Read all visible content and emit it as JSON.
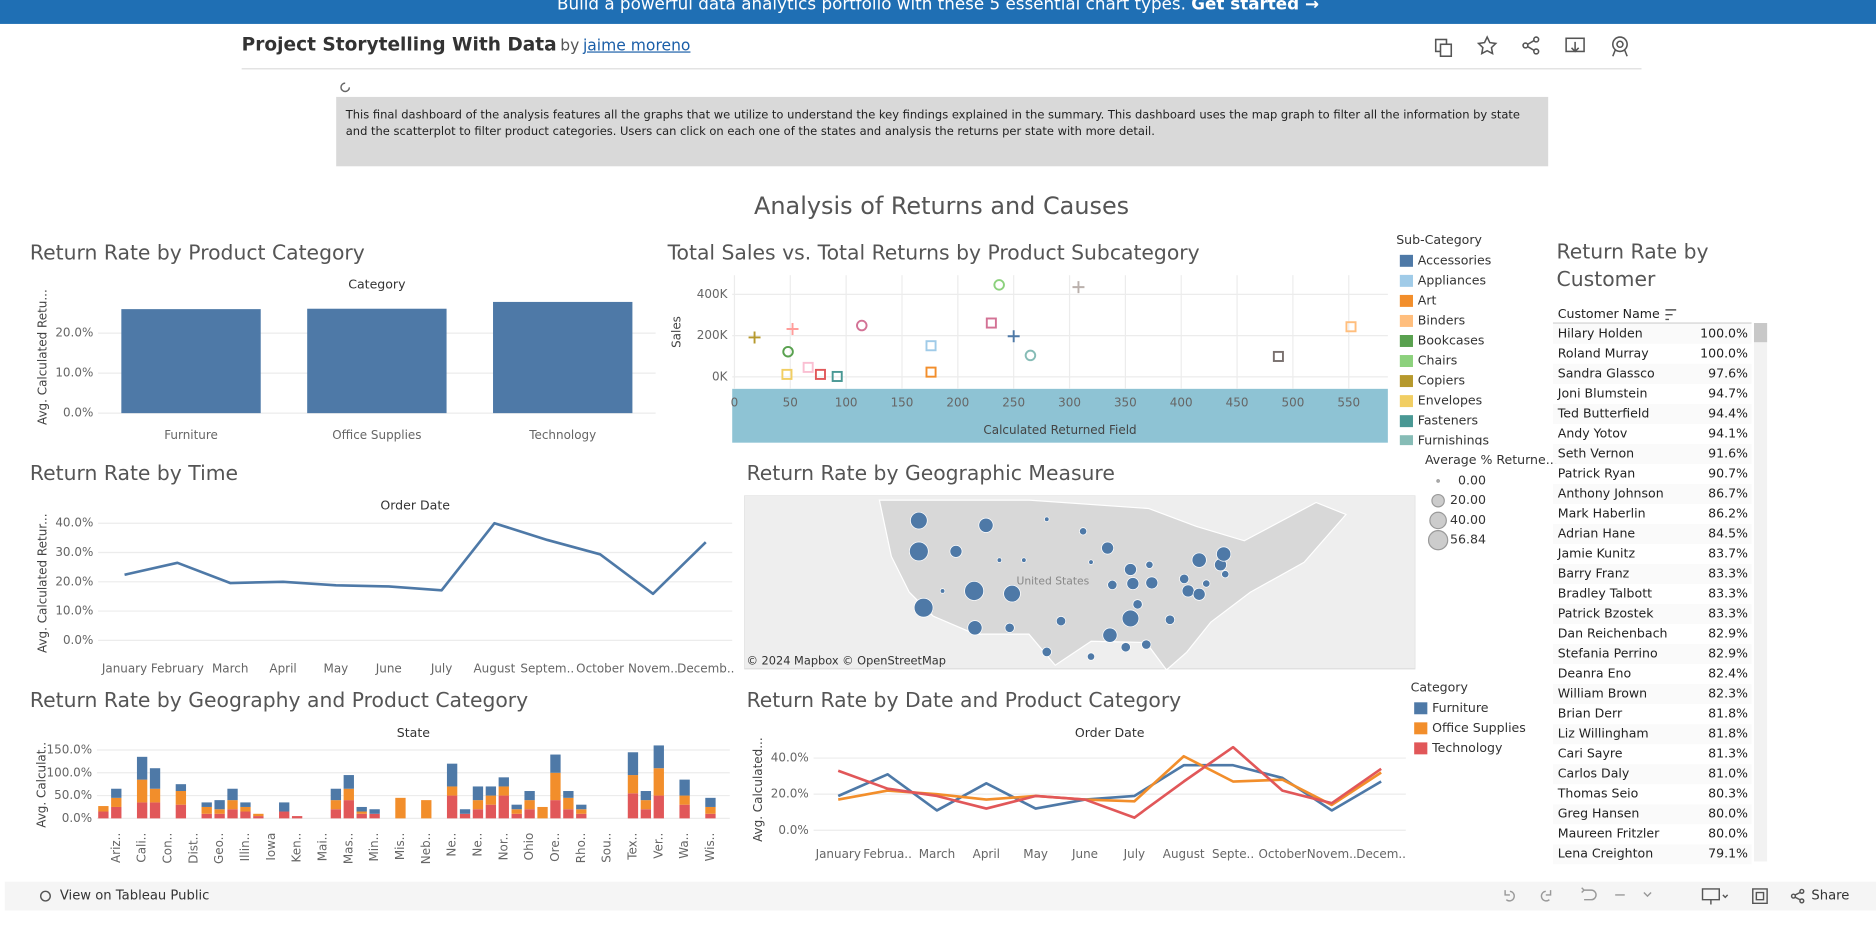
{
  "banner": {
    "text": "Build a powerful data analytics portfolio with these 5 essential chart types.",
    "link": "Get started →"
  },
  "header": {
    "title": "Project Storytelling With Data",
    "by": "by",
    "author": "jaime moreno"
  },
  "description": "This final dashboard of the analysis features all the graphs that we utilize to understand the key findings explained in the summary. This dashboard uses the map graph to filter all the information by state and the scatterplot to filter product categories. Users can click on each one of the states and analysis the returns per state with more detail.",
  "dashboard_title": "Analysis of Returns and Causes",
  "chart_data": [
    {
      "type": "bar",
      "title": "Return Rate by Product Category",
      "x_header": "Category",
      "y_label": "Avg. Calculated Retu...",
      "categories": [
        "Furniture",
        "Office Supplies",
        "Technology"
      ],
      "values": [
        26.0,
        26.1,
        27.8
      ],
      "color": "#4e79a7",
      "ylim": [
        -2,
        30
      ],
      "yticks": [
        {
          "value": 0,
          "label": "0.0%"
        },
        {
          "value": 10,
          "label": "10.0%"
        },
        {
          "value": 20,
          "label": "20.0%"
        }
      ],
      "grid": true
    },
    {
      "type": "scatter",
      "title": "Total Sales vs. Total Returns by Product Subcategory",
      "x_label": "Calculated Returned Field",
      "y_label": "Sales",
      "x": [
        18,
        52,
        114,
        237,
        308,
        48,
        47,
        66,
        77,
        92,
        176,
        176,
        230,
        250,
        265,
        487,
        552
      ],
      "y": [
        191000,
        232000,
        249000,
        446000,
        435000,
        122000,
        12000,
        46000,
        12000,
        2000,
        151000,
        23000,
        261000,
        197000,
        104000,
        99000,
        243000
      ],
      "colors": [
        "#b6992d",
        "#ff9d9a",
        "#d37295",
        "#8cd17d",
        "#bab0ac",
        "#59a14f",
        "#f1ce63",
        "#fabfd2",
        "#e15759",
        "#499894",
        "#a0cbe8",
        "#f28e2b",
        "#d37295",
        "#4e79a7",
        "#86bcb6",
        "#79706e",
        "#ffbe7d"
      ],
      "shapes": [
        "plus",
        "plus",
        "circle",
        "circle",
        "plus",
        "circle",
        "square",
        "square",
        "square",
        "square",
        "square",
        "square",
        "square",
        "plus",
        "circle",
        "square",
        "square"
      ],
      "xlim": [
        -2,
        585
      ],
      "xticks": [
        0,
        50,
        100,
        150,
        200,
        250,
        300,
        350,
        400,
        450,
        500,
        550
      ],
      "ylim": [
        -58000,
        493000
      ],
      "yticks": [
        {
          "value": 0,
          "label": "0K"
        },
        {
          "value": 200000,
          "label": "200K"
        },
        {
          "value": 400000,
          "label": "400K"
        }
      ],
      "grid": true,
      "legend_title": "Sub-Category",
      "legend": [
        {
          "name": "Accessories",
          "color": "#4e79a7"
        },
        {
          "name": "Appliances",
          "color": "#a0cbe8"
        },
        {
          "name": "Art",
          "color": "#f28e2b"
        },
        {
          "name": "Binders",
          "color": "#ffbe7d"
        },
        {
          "name": "Bookcases",
          "color": "#59a14f"
        },
        {
          "name": "Chairs",
          "color": "#8cd17d"
        },
        {
          "name": "Copiers",
          "color": "#b6992d"
        },
        {
          "name": "Envelopes",
          "color": "#f1ce63"
        },
        {
          "name": "Fasteners",
          "color": "#499894"
        },
        {
          "name": "Furnishings",
          "color": "#86bcb6"
        }
      ]
    },
    {
      "type": "line",
      "title": "Return Rate by Time",
      "x_header": "Order Date",
      "y_label": "Avg. Calculated Retur...",
      "categories": [
        "January",
        "February",
        "March",
        "April",
        "May",
        "June",
        "July",
        "August",
        "Septem..",
        "October",
        "Novem..",
        "Decemb.."
      ],
      "values": [
        22.4,
        26.5,
        19.6,
        20.0,
        18.8,
        18.4,
        17.1,
        40.0,
        34.3,
        29.4,
        15.9,
        33.5
      ],
      "color": "#4e79a7",
      "ylim": [
        -4,
        43
      ],
      "yticks": [
        {
          "value": 0,
          "label": "0.0%"
        },
        {
          "value": 10,
          "label": "10.0%"
        },
        {
          "value": 20,
          "label": "20.0%"
        },
        {
          "value": 30,
          "label": "30.0%"
        },
        {
          "value": 40,
          "label": "40.0%"
        }
      ],
      "grid": true
    },
    {
      "type": "map",
      "title": "Return Rate by Geographic Measure",
      "place_label": "United States",
      "attribution": "© 2024 Mapbox © OpenStreetMap",
      "color": "#4e79a7",
      "lon": [
        -120.0,
        -120.0,
        -115.3,
        -111.5,
        -119.4,
        -113.0,
        -108.2,
        -112.9,
        -108.5,
        -103.8,
        -103.8,
        -102.0,
        -99.2,
        -96.1,
        -98.2,
        -95.5,
        -93.2,
        -92.9,
        -90.5,
        -92.3,
        -93.2,
        -95.8,
        -93.8,
        -91.2,
        -88.2,
        -86.4,
        -85.9,
        -84.5,
        -84.5,
        -81.8,
        -81.4,
        -81.2,
        -83.6,
        -90.8,
        -98.2,
        -106.7,
        -109.8,
        -117.0
      ],
      "lat": [
        46.3,
        41.7,
        41.7,
        45.6,
        33.3,
        35.8,
        35.4,
        30.3,
        30.3,
        46.5,
        26.7,
        31.3,
        44.7,
        42.2,
        40.1,
        36.7,
        39.0,
        36.9,
        37.0,
        33.8,
        31.7,
        29.2,
        27.4,
        27.8,
        31.5,
        37.6,
        35.8,
        35.3,
        40.4,
        39.7,
        41.3,
        38.3,
        36.9,
        39.7,
        26.0,
        40.4,
        40.4,
        35.8
      ],
      "sizes": [
        42,
        55,
        19,
        29,
        55,
        56,
        42,
        29,
        10,
        1,
        10,
        10,
        5,
        19,
        1,
        10,
        19,
        19,
        19,
        10,
        42,
        29,
        10,
        10,
        10,
        10,
        19,
        19,
        29,
        19,
        29,
        5,
        5,
        5,
        5,
        1,
        1,
        1
      ],
      "size_legend_title": "Average % Returne...",
      "size_legend": [
        {
          "value": 0,
          "label": "0.00"
        },
        {
          "value": 20,
          "label": "20.00"
        },
        {
          "value": 40,
          "label": "40.00"
        },
        {
          "value": 56.84,
          "label": "56.84"
        }
      ]
    },
    {
      "type": "stacked_bar",
      "title": "Return Rate by Geography and Product Category",
      "x_header": "State",
      "y_label": "Avg. Calculat..",
      "categories": [
        null,
        "Ariz..",
        null,
        "Cali..",
        null,
        "Con..",
        null,
        "Dist..",
        null,
        "Geo..",
        null,
        "Illin..",
        null,
        "Iowa",
        null,
        "Ken..",
        null,
        "Mai..",
        null,
        "Mas..",
        null,
        "Min..",
        null,
        "Mis..",
        null,
        "Neb..",
        null,
        "Ne..",
        null,
        "Ne..",
        null,
        "Nor..",
        null,
        "Ohio",
        null,
        "Ore..",
        null,
        "Rho..",
        null,
        "Sou..",
        null,
        "Tex..",
        null,
        "Ver..",
        null,
        "Wa..",
        null,
        "Wis..",
        null
      ],
      "series": [
        {
          "color": "#e15759",
          "values": [
            15,
            25,
            null,
            35,
            35,
            null,
            30,
            null,
            10,
            10,
            20,
            15,
            5,
            null,
            15,
            5,
            null,
            null,
            20,
            40,
            10,
            10,
            null,
            null,
            null,
            null,
            null,
            50,
            10,
            20,
            30,
            50,
            10,
            20,
            null,
            40,
            20,
            10,
            null,
            null,
            null,
            55,
            20,
            50,
            null,
            30,
            null,
            10,
            null
          ]
        },
        {
          "color": "#f28e2b",
          "values": [
            12,
            20,
            null,
            50,
            30,
            null,
            30,
            null,
            15,
            10,
            20,
            10,
            5,
            null,
            null,
            null,
            null,
            null,
            20,
            25,
            5,
            null,
            null,
            45,
            null,
            40,
            null,
            20,
            null,
            20,
            20,
            20,
            10,
            20,
            25,
            60,
            25,
            10,
            null,
            null,
            null,
            40,
            20,
            60,
            null,
            20,
            null,
            15,
            null
          ]
        },
        {
          "color": "#4e79a7",
          "values": [
            null,
            20,
            null,
            50,
            45,
            null,
            15,
            null,
            10,
            20,
            25,
            10,
            null,
            null,
            20,
            null,
            null,
            null,
            25,
            30,
            10,
            10,
            null,
            null,
            null,
            null,
            null,
            50,
            10,
            30,
            20,
            20,
            10,
            20,
            null,
            40,
            15,
            10,
            null,
            null,
            null,
            50,
            20,
            50,
            null,
            35,
            null,
            20,
            null
          ]
        }
      ],
      "ylim": [
        -21,
        168
      ],
      "yticks": [
        {
          "value": 0,
          "label": "0.0%"
        },
        {
          "value": 50,
          "label": "50.0%"
        },
        {
          "value": 100,
          "label": "100.0%"
        },
        {
          "value": 150,
          "label": "150.0%"
        }
      ],
      "grid": true
    },
    {
      "type": "line",
      "title": "Return Rate by Date and Product Category",
      "x_header": "Order Date",
      "y_label": "Avg. Calculated...",
      "categories": [
        "January",
        "Februa..",
        "March",
        "April",
        "May",
        "June",
        "July",
        "August",
        "Septe..",
        "October",
        "Novem..",
        "Decem.."
      ],
      "series": [
        {
          "name": "Furniture",
          "color": "#4e79a7",
          "values": [
            19,
            31,
            11,
            26,
            12,
            17,
            19,
            36,
            36,
            29,
            11,
            27
          ]
        },
        {
          "name": "Office Supplies",
          "color": "#f28e2b",
          "values": [
            17,
            22,
            20,
            17,
            19,
            17,
            16,
            41,
            27,
            28,
            14,
            32
          ]
        },
        {
          "name": "Technology",
          "color": "#e15759",
          "values": [
            33,
            23,
            19,
            12,
            19,
            17,
            7,
            27,
            46,
            22,
            15,
            34
          ]
        }
      ],
      "legend_title": "Category",
      "ylim": [
        -4,
        49
      ],
      "yticks": [
        {
          "value": 0,
          "label": "0.0%"
        },
        {
          "value": 20,
          "label": "20.0%"
        },
        {
          "value": 40,
          "label": "40.0%"
        }
      ],
      "grid": true
    }
  ],
  "customer_table": {
    "title": "Return Rate by Customer",
    "column": "Customer Name",
    "rows": [
      [
        "Hilary Holden",
        "100.0%"
      ],
      [
        "Roland Murray",
        "100.0%"
      ],
      [
        "Sandra Glassco",
        "97.6%"
      ],
      [
        "Joni Blumstein",
        "94.7%"
      ],
      [
        "Ted Butterfield",
        "94.4%"
      ],
      [
        "Andy Yotov",
        "94.1%"
      ],
      [
        "Seth Vernon",
        "91.6%"
      ],
      [
        "Patrick Ryan",
        "90.7%"
      ],
      [
        "Anthony Johnson",
        "86.7%"
      ],
      [
        "Mark Haberlin",
        "86.2%"
      ],
      [
        "Adrian Hane",
        "84.5%"
      ],
      [
        "Jamie Kunitz",
        "83.7%"
      ],
      [
        "Barry Franz",
        "83.3%"
      ],
      [
        "Bradley Talbott",
        "83.3%"
      ],
      [
        "Patrick Bzostek",
        "83.3%"
      ],
      [
        "Dan Reichenbach",
        "82.9%"
      ],
      [
        "Stefania Perrino",
        "82.9%"
      ],
      [
        "Deanra Eno",
        "82.4%"
      ],
      [
        "William Brown",
        "82.3%"
      ],
      [
        "Brian Derr",
        "81.8%"
      ],
      [
        "Liz Willingham",
        "81.8%"
      ],
      [
        "Cari Sayre",
        "81.3%"
      ],
      [
        "Carlos Daly",
        "81.0%"
      ],
      [
        "Thomas Seio",
        "80.3%"
      ],
      [
        "Greg Hansen",
        "80.0%"
      ],
      [
        "Maureen Fritzler",
        "80.0%"
      ],
      [
        "Lena Creighton",
        "79.1%"
      ]
    ]
  },
  "footer": {
    "view": "View on Tableau Public",
    "share": "Share"
  }
}
